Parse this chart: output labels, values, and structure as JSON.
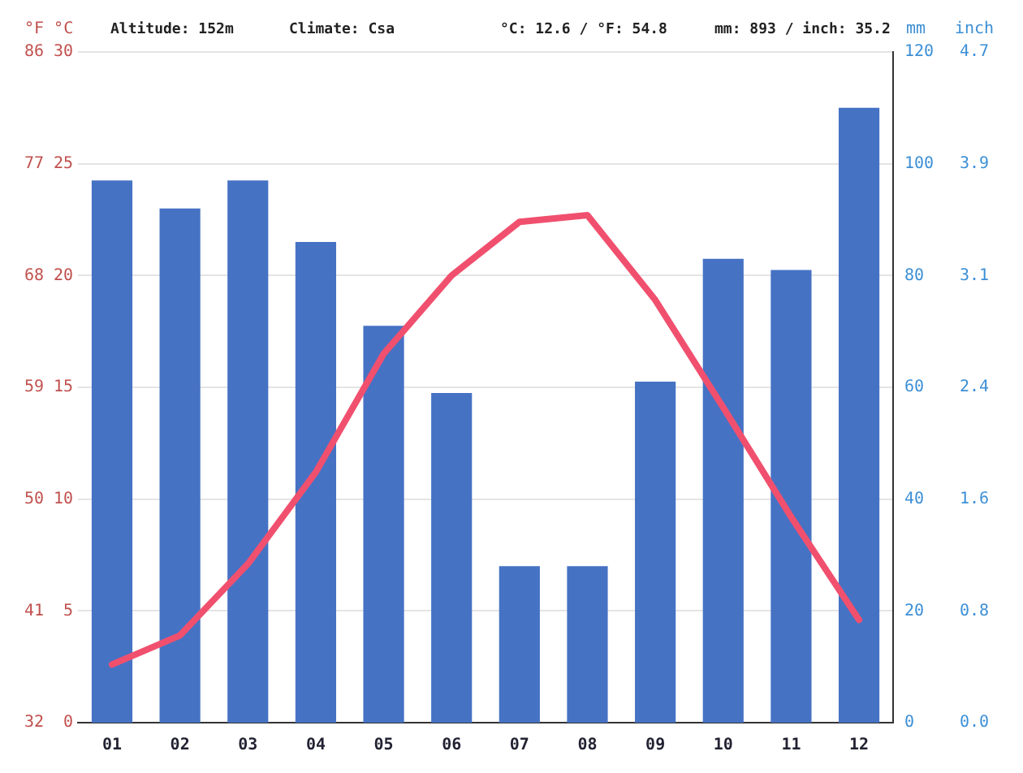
{
  "chart_data": {
    "type": "bar",
    "categories": [
      "01",
      "02",
      "03",
      "04",
      "05",
      "06",
      "07",
      "08",
      "09",
      "10",
      "11",
      "12"
    ],
    "series": [
      {
        "axis": "y2",
        "color": "#4672c4",
        "values": [
          97,
          92,
          97,
          86,
          71,
          59,
          28,
          28,
          61,
          83,
          81,
          110
        ]
      },
      {
        "type": "line",
        "color": "#f0506e",
        "values": [
          2.6,
          3.9,
          7.1,
          11.2,
          16.5,
          20.0,
          22.4,
          22.7,
          18.9,
          14.1,
          9.2,
          4.6
        ]
      }
    ],
    "ylabel": "°C",
    "y2label": "mm",
    "y3label": "°F",
    "ylim": [
      0,
      30
    ],
    "yticks": [
      0,
      5,
      10,
      15,
      20,
      25,
      30
    ],
    "y2lim": [
      0,
      120
    ],
    "y2ticks": [
      0,
      20,
      40,
      60,
      80,
      100,
      120
    ],
    "y3lim": [
      32,
      86
    ],
    "y3ticks": [
      32,
      41,
      50,
      59,
      68,
      77,
      86
    ],
    "annotations": [
      "Altitude: 152m",
      "Climate: Csa",
      "°C: 12.6 / °F: 54.8",
      "mm: 893 / inch: 35.2",
      "inch",
      "0.0",
      "0.8",
      "1.6",
      "2.4",
      "3.1",
      "3.9",
      "4.7"
    ],
    "grid": "y",
    "marker": "none",
    "line_style": "solid"
  }
}
